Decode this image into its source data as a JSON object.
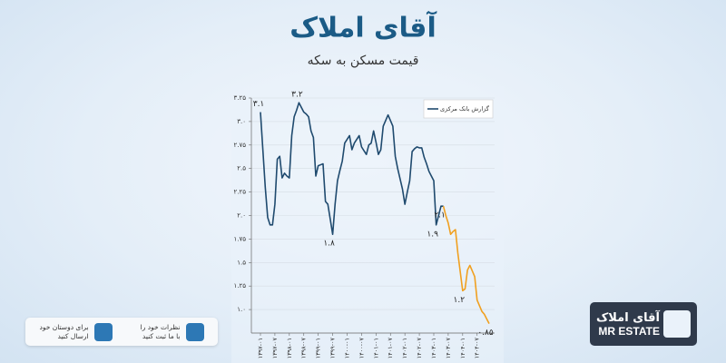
{
  "chart_data": {
    "type": "line",
    "title": "آقای املاک",
    "subtitle": "قیمت مسکن به سکه",
    "categories": [
      "۱۳۹۷-۰۱",
      null,
      null,
      null,
      null,
      null,
      "۱۳۹۷-۰۷",
      null,
      null,
      null,
      null,
      null,
      "۱۳۹۸-۰۱",
      null,
      null,
      null,
      null,
      null,
      "۱۳۹۸-۰۷",
      null,
      null,
      null,
      null,
      null,
      "۱۳۹۹-۰۱",
      null,
      null,
      null,
      null,
      null,
      "۱۳۹۹-۰۷",
      null,
      null,
      null,
      null,
      null,
      "۱۴۰۰-۰۱",
      null,
      null,
      null,
      null,
      null,
      "۱۴۰۰-۰۷",
      null,
      null,
      null,
      null,
      null,
      "۱۴۰۱-۰۱",
      null,
      null,
      null,
      null,
      null,
      "۱۴۰۱-۰۷",
      null,
      null,
      null,
      null,
      null,
      "۱۴۰۲-۰۱",
      null,
      null,
      null,
      null,
      null,
      "۱۴۰۲-۰۷",
      null,
      null,
      null,
      null,
      null,
      "۱۴۰۳-۰۱",
      null,
      null,
      null,
      null,
      null,
      "۱۴۰۳-۰۷",
      null,
      null,
      null,
      null,
      null,
      "۱۴۰۴-۰۱",
      null,
      null,
      null,
      null,
      null,
      "۱۴۰۴-۰۷",
      null,
      null,
      null,
      null,
      null
    ],
    "series": [
      {
        "name": "گزارش بانک مرکزی",
        "color": "#1f4a6e",
        "values": [
          3.1,
          2.7,
          2.3,
          1.98,
          1.9,
          1.9,
          2.12,
          2.6,
          2.63,
          2.4,
          2.45,
          2.42,
          2.4,
          2.85,
          3.05,
          3.12,
          3.2,
          3.15,
          3.1,
          3.08,
          3.05,
          2.9,
          2.83,
          2.42,
          2.53,
          2.54,
          2.55,
          2.15,
          2.12,
          1.96,
          1.8,
          2.12,
          2.37,
          2.48,
          2.58,
          2.77,
          2.81,
          2.85,
          2.7,
          2.77,
          2.81,
          2.85,
          2.73,
          2.69,
          2.65,
          2.75,
          2.77,
          2.9,
          2.78,
          2.65,
          2.7,
          2.95,
          3.01,
          3.07,
          3.01,
          2.95,
          2.63,
          2.5,
          2.39,
          2.28,
          2.12,
          2.25,
          2.37,
          2.68,
          2.71,
          2.73,
          2.72,
          2.72,
          2.62,
          2.55,
          2.47,
          2.42,
          2.37,
          1.9,
          2.0,
          2.1,
          2.1,
          null,
          null,
          null,
          null,
          null,
          null,
          null,
          null,
          null,
          null,
          null,
          null,
          null,
          null,
          null,
          null,
          null,
          null,
          null
        ],
        "value_labels": [
          "۳.۱",
          null,
          null,
          null,
          null,
          null,
          null,
          null,
          null,
          null,
          null,
          null,
          null,
          null,
          null,
          null,
          "۳.۲",
          null,
          null,
          null,
          null,
          null,
          null,
          null,
          null,
          null,
          null,
          null,
          null,
          null,
          "۱.۸",
          null,
          null,
          null,
          null,
          null,
          null,
          null,
          null,
          null,
          null,
          null,
          null,
          null,
          null,
          null,
          null,
          null,
          null,
          null,
          null,
          null,
          null,
          null,
          null,
          null,
          null,
          null,
          null,
          null,
          null,
          null,
          null,
          null,
          null,
          null,
          null,
          null,
          null,
          null,
          null,
          null,
          null,
          "۱.۹",
          null,
          null,
          "۲.۱",
          null,
          null,
          null,
          null,
          null,
          null,
          null,
          null,
          null,
          null,
          null,
          null,
          null,
          null,
          null,
          null,
          null,
          null,
          null
        ]
      },
      {
        "color": "#f0a020",
        "values": [
          null,
          null,
          null,
          null,
          null,
          null,
          null,
          null,
          null,
          null,
          null,
          null,
          null,
          null,
          null,
          null,
          null,
          null,
          null,
          null,
          null,
          null,
          null,
          null,
          null,
          null,
          null,
          null,
          null,
          null,
          null,
          null,
          null,
          null,
          null,
          null,
          null,
          null,
          null,
          null,
          null,
          null,
          null,
          null,
          null,
          null,
          null,
          null,
          null,
          null,
          null,
          null,
          null,
          null,
          null,
          null,
          null,
          null,
          null,
          null,
          null,
          null,
          null,
          null,
          null,
          null,
          null,
          null,
          null,
          null,
          null,
          null,
          null,
          null,
          null,
          null,
          2.1,
          2.0,
          1.92,
          1.8,
          1.83,
          1.85,
          1.6,
          1.4,
          1.2,
          1.22,
          1.42,
          1.47,
          1.41,
          1.35,
          1.1,
          1.04,
          0.98,
          0.95,
          0.9,
          0.85
        ],
        "value_labels": [
          null,
          null,
          null,
          null,
          null,
          null,
          null,
          null,
          null,
          null,
          null,
          null,
          null,
          null,
          null,
          null,
          null,
          null,
          null,
          null,
          null,
          null,
          null,
          null,
          null,
          null,
          null,
          null,
          null,
          null,
          null,
          null,
          null,
          null,
          null,
          null,
          null,
          null,
          null,
          null,
          null,
          null,
          null,
          null,
          null,
          null,
          null,
          null,
          null,
          null,
          null,
          null,
          null,
          null,
          null,
          null,
          null,
          null,
          null,
          null,
          null,
          null,
          null,
          null,
          null,
          null,
          null,
          null,
          null,
          null,
          null,
          null,
          null,
          null,
          null,
          null,
          null,
          null,
          null,
          null,
          null,
          null,
          null,
          null,
          "۱.۲",
          null,
          null,
          null,
          null,
          null,
          null,
          null,
          null,
          null,
          null,
          "۰.۸۵"
        ]
      }
    ],
    "ylim": [
      0.75,
      3.25
    ],
    "yticks": [
      {
        "value": 1,
        "label": "۱.۰"
      },
      {
        "value": 1.25,
        "label": "۱.۲۵"
      },
      {
        "value": 1.5,
        "label": "۱.۵"
      },
      {
        "value": 1.75,
        "label": "۱.۷۵"
      },
      {
        "value": 2,
        "label": "۲.۰"
      },
      {
        "value": 2.25,
        "label": "۲.۲۵"
      },
      {
        "value": 2.5,
        "label": "۲.۵"
      },
      {
        "value": 2.75,
        "label": "۲.۷۵"
      },
      {
        "value": 3,
        "label": "۳.۰"
      },
      {
        "value": 3.25,
        "label": "۳.۲۵"
      }
    ],
    "grid": true,
    "legend": "upper right"
  },
  "share_bar": {
    "comment": [
      "نظرات خود را",
      "با ما ثبت کنید"
    ],
    "share": [
      "برای دوستان خود",
      "ارسال کنید"
    ]
  },
  "logo": {
    "name": "آقای املاک",
    "latin": "MR ESTATE"
  }
}
